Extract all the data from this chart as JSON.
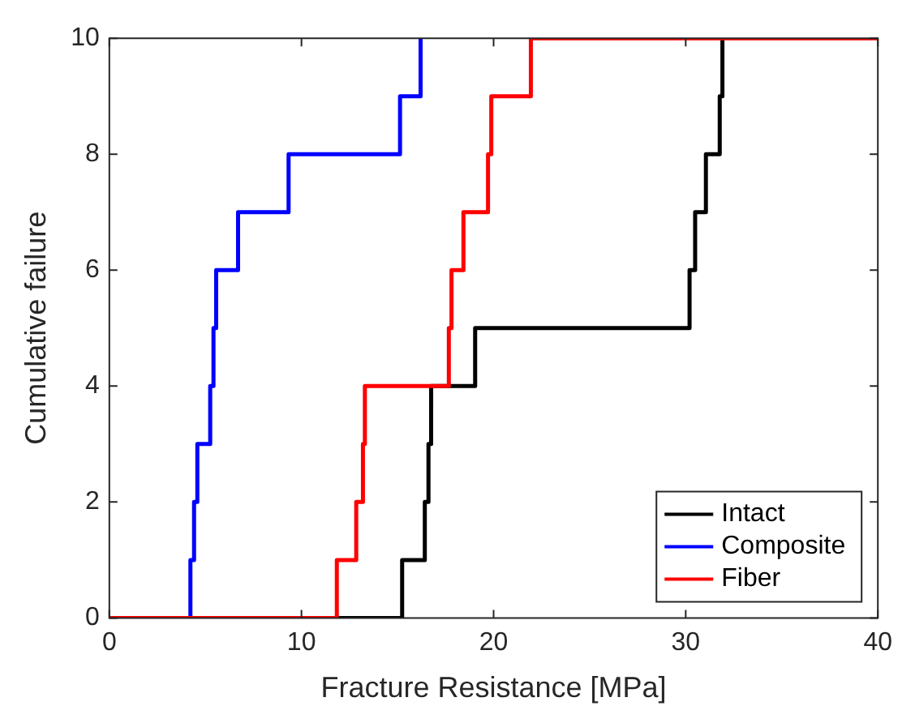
{
  "chart_data": {
    "type": "step",
    "xlabel": "Fracture Resistance [MPa]",
    "ylabel": "Cumulative failure",
    "xlim": [
      0,
      40
    ],
    "xticks": [
      0,
      10,
      20,
      30,
      40
    ],
    "ylim": [
      0,
      10
    ],
    "yticks": [
      0,
      2,
      4,
      6,
      8,
      10
    ],
    "grid": false,
    "legend": "bottom right",
    "line_style": "solid",
    "marker": "none",
    "series": [
      {
        "name": "Intact",
        "color": "#000000",
        "x": [
          0,
          15.24,
          16.42,
          16.61,
          16.75,
          19.04,
          30.2,
          30.49,
          31.05,
          31.77,
          31.91
        ],
        "values": [
          0,
          1,
          2,
          3,
          4,
          5,
          6,
          7,
          8,
          9,
          10
        ]
      },
      {
        "name": "Composite",
        "color": "#0000ff",
        "x": [
          0,
          4.22,
          4.41,
          4.58,
          5.25,
          5.42,
          5.56,
          6.7,
          9.33,
          15.13,
          16.2
        ],
        "values": [
          0,
          1,
          2,
          3,
          4,
          5,
          6,
          7,
          8,
          9,
          10
        ]
      },
      {
        "name": "Fiber",
        "color": "#ff0000",
        "x": [
          0,
          11.84,
          12.85,
          13.2,
          13.3,
          17.67,
          17.81,
          18.43,
          19.71,
          19.88,
          21.94,
          40
        ],
        "values": [
          0,
          1,
          2,
          3,
          4,
          5,
          6,
          7,
          8,
          9,
          10,
          10
        ]
      }
    ]
  }
}
